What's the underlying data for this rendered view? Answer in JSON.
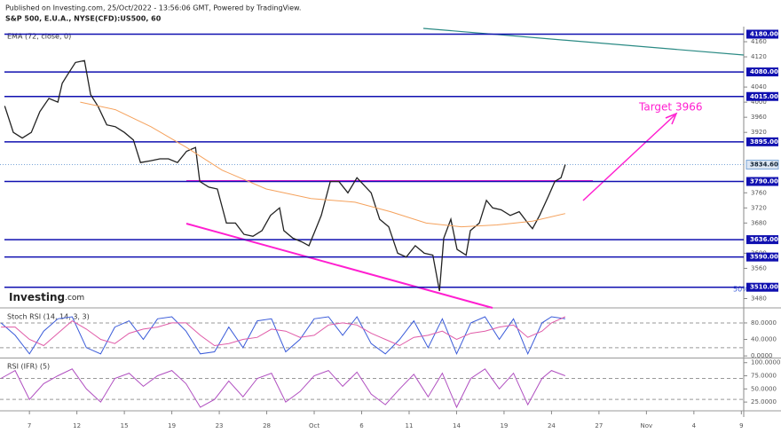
{
  "header": {
    "published": "Published on Investing.com, 25/Oct/2022 - 13:56:06 GMT, Powered by TradingView.",
    "symbol": "S&P 500, E.U.A., NYSE(CFD):US500, 60"
  },
  "chart_data": [
    {
      "type": "line",
      "indicator_label": "EMA (72, close, 0)",
      "xlim": [
        -0.62,
        15.05
      ],
      "ylim": [
        3460,
        4200
      ],
      "yticks": [
        3480,
        3560,
        3600,
        3680,
        3720,
        3760,
        3920,
        3960,
        4000,
        4040,
        4120,
        4160
      ],
      "levels": [
        {
          "value": 4180,
          "label": "4180.00"
        },
        {
          "value": 4080,
          "label": "4080.00"
        },
        {
          "value": 4015,
          "label": "4015.00"
        },
        {
          "value": 3895,
          "label": "3895.00"
        },
        {
          "value": 3790,
          "label": "3790.00"
        },
        {
          "value": 3636,
          "label": "3636.00"
        },
        {
          "value": 3590,
          "label": "3590.00"
        },
        {
          "value": 3510,
          "label": "3510.00"
        }
      ],
      "level_color": "#1010b0",
      "last_price": {
        "value": 3834.6,
        "label": "3834.60"
      },
      "annotations": [
        "Target 3966",
        "50%"
      ],
      "logo": [
        "Investing",
        ".com"
      ],
      "series": [
        {
          "color": "#222222",
          "x": [
            -0.52,
            -0.34,
            -0.15,
            0.04,
            0.22,
            0.41,
            0.6,
            0.69,
            0.79,
            0.97,
            1.16,
            1.29,
            1.44,
            1.63,
            1.81,
            2.0,
            2.19,
            2.34,
            2.56,
            2.75,
            2.93,
            3.12,
            3.31,
            3.5,
            3.59,
            3.78,
            3.96,
            4.15,
            4.34,
            4.52,
            4.71,
            4.9,
            5.08,
            5.27,
            5.36,
            5.55,
            5.74,
            5.89,
            6.02,
            6.15,
            6.34,
            6.52,
            6.71,
            6.9,
            7.05,
            7.2,
            7.38,
            7.57,
            7.76,
            7.94,
            8.13,
            8.32,
            8.5,
            8.64,
            8.73,
            8.88,
            9.01,
            9.2,
            9.29,
            9.48,
            9.63,
            9.76,
            9.94,
            10.13,
            10.32,
            10.5,
            10.6,
            10.75,
            10.93,
            11.07,
            11.2,
            11.29
          ],
          "values": [
            3990,
            3920,
            3905,
            3920,
            3975,
            4010,
            4000,
            4050,
            4070,
            4105,
            4110,
            4020,
            3990,
            3940,
            3935,
            3920,
            3900,
            3840,
            3845,
            3850,
            3850,
            3840,
            3870,
            3880,
            3790,
            3775,
            3770,
            3680,
            3680,
            3650,
            3645,
            3660,
            3700,
            3720,
            3660,
            3640,
            3630,
            3620,
            3660,
            3700,
            3790,
            3790,
            3760,
            3800,
            3780,
            3760,
            3690,
            3670,
            3600,
            3590,
            3620,
            3600,
            3595,
            3500,
            3640,
            3690,
            3610,
            3595,
            3660,
            3680,
            3740,
            3720,
            3715,
            3700,
            3710,
            3680,
            3665,
            3700,
            3750,
            3790,
            3800,
            3834.6
          ]
        },
        {
          "color": "#f5a25d",
          "x": [
            1.07,
            1.81,
            2.56,
            3.31,
            4.06,
            4.99,
            5.93,
            6.86,
            7.61,
            8.36,
            9.1,
            9.85,
            10.6,
            11.29
          ],
          "values": [
            4000,
            3980,
            3935,
            3880,
            3820,
            3770,
            3745,
            3735,
            3710,
            3680,
            3670,
            3675,
            3685,
            3705
          ]
        }
      ]
    },
    {
      "type": "line",
      "title": "Stoch RSI (14, 14, 3, 3)",
      "xlim": [
        -0.62,
        15.05
      ],
      "ylim": [
        -4,
        110
      ],
      "yticks": [
        {
          "value": 80,
          "label": "80.0000"
        },
        {
          "value": 40,
          "label": "40.0000"
        },
        {
          "value": 0,
          "label": "0.0000"
        }
      ],
      "bands": [
        80,
        20
      ],
      "series": [
        {
          "color": "#3a5bd9",
          "x": [
            -0.6,
            -0.3,
            0.0,
            0.3,
            0.6,
            0.9,
            1.2,
            1.5,
            1.8,
            2.1,
            2.4,
            2.7,
            3.0,
            3.3,
            3.6,
            3.9,
            4.2,
            4.5,
            4.8,
            5.1,
            5.4,
            5.7,
            6.0,
            6.3,
            6.6,
            6.9,
            7.2,
            7.5,
            7.8,
            8.1,
            8.4,
            8.7,
            9.0,
            9.3,
            9.6,
            9.9,
            10.2,
            10.5,
            10.8,
            11.0,
            11.29
          ],
          "values": [
            80,
            50,
            5,
            60,
            90,
            95,
            20,
            5,
            70,
            85,
            40,
            90,
            95,
            60,
            5,
            10,
            70,
            20,
            85,
            90,
            10,
            40,
            90,
            95,
            50,
            95,
            30,
            5,
            40,
            85,
            20,
            90,
            5,
            80,
            95,
            40,
            90,
            5,
            80,
            95,
            90
          ]
        },
        {
          "color": "#e05ca8",
          "x": [
            -0.6,
            -0.3,
            0.0,
            0.3,
            0.6,
            0.9,
            1.2,
            1.5,
            1.8,
            2.1,
            2.4,
            2.7,
            3.0,
            3.3,
            3.6,
            3.9,
            4.2,
            4.5,
            4.8,
            5.1,
            5.4,
            5.7,
            6.0,
            6.3,
            6.6,
            6.9,
            7.2,
            7.5,
            7.8,
            8.1,
            8.4,
            8.7,
            9.0,
            9.3,
            9.6,
            9.9,
            10.2,
            10.5,
            10.8,
            11.0,
            11.29
          ],
          "values": [
            70,
            70,
            40,
            25,
            55,
            85,
            65,
            40,
            30,
            55,
            65,
            70,
            80,
            80,
            50,
            25,
            30,
            40,
            45,
            65,
            60,
            45,
            50,
            75,
            80,
            75,
            55,
            40,
            25,
            45,
            50,
            60,
            40,
            55,
            60,
            70,
            75,
            45,
            60,
            80,
            95
          ]
        }
      ]
    },
    {
      "type": "line",
      "title": "RSI (IFR) (5)",
      "xlim": [
        -0.62,
        15.05
      ],
      "ylim": [
        10,
        108
      ],
      "yticks": [
        {
          "value": 100,
          "label": "100.0000"
        },
        {
          "value": 75,
          "label": "75.0000"
        },
        {
          "value": 50,
          "label": "50.0000"
        },
        {
          "value": 25,
          "label": "25.0000"
        }
      ],
      "bands": [
        70,
        30
      ],
      "xticks": [
        {
          "value": 0,
          "label": "7"
        },
        {
          "value": 1,
          "label": "12"
        },
        {
          "value": 2,
          "label": "15"
        },
        {
          "value": 3,
          "label": "19"
        },
        {
          "value": 4,
          "label": "23"
        },
        {
          "value": 5,
          "label": "28"
        },
        {
          "value": 6,
          "label": "Oct"
        },
        {
          "value": 7,
          "label": "6"
        },
        {
          "value": 8,
          "label": "11"
        },
        {
          "value": 9,
          "label": "14"
        },
        {
          "value": 10,
          "label": "19"
        },
        {
          "value": 11,
          "label": "24"
        },
        {
          "value": 12,
          "label": "27"
        },
        {
          "value": 13,
          "label": "Nov"
        },
        {
          "value": 14,
          "label": "4"
        },
        {
          "value": 15,
          "label": "9"
        }
      ],
      "series": [
        {
          "color": "#b04fc0",
          "x": [
            -0.6,
            -0.3,
            0.0,
            0.3,
            0.6,
            0.9,
            1.2,
            1.5,
            1.8,
            2.1,
            2.4,
            2.7,
            3.0,
            3.3,
            3.6,
            3.9,
            4.2,
            4.5,
            4.8,
            5.1,
            5.4,
            5.7,
            6.0,
            6.3,
            6.6,
            6.9,
            7.2,
            7.5,
            7.8,
            8.1,
            8.4,
            8.7,
            9.0,
            9.3,
            9.6,
            9.9,
            10.2,
            10.5,
            10.8,
            11.0,
            11.29
          ],
          "values": [
            70,
            85,
            30,
            60,
            75,
            88,
            50,
            25,
            70,
            80,
            55,
            75,
            85,
            60,
            15,
            30,
            65,
            35,
            70,
            80,
            25,
            45,
            75,
            85,
            55,
            82,
            40,
            20,
            50,
            78,
            35,
            80,
            15,
            70,
            88,
            50,
            80,
            20,
            70,
            85,
            75
          ]
        }
      ]
    }
  ]
}
